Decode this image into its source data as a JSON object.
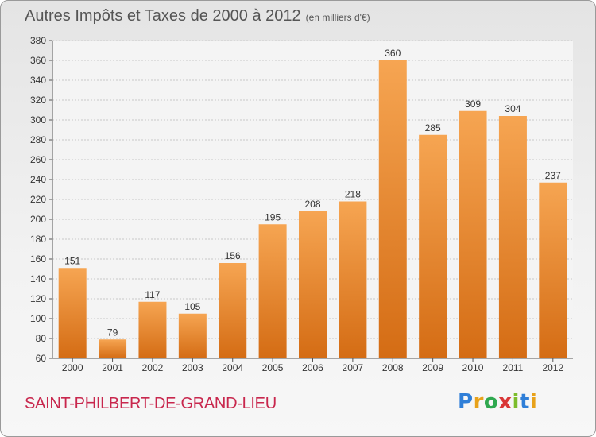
{
  "header": {
    "title": "Autres Impôts et Taxes de 2000 à 2012",
    "unit": "(en milliers d'€)"
  },
  "footer": {
    "city": "SAINT-PHILBERT-DE-GRAND-LIEU",
    "logo": "Proxiti"
  },
  "colors": {
    "bar_top": "#f6a552",
    "bar_bottom": "#d46c14",
    "axis_text": "#333333"
  },
  "chart_data": {
    "type": "bar",
    "title": "Autres Impôts et Taxes de 2000 à 2012",
    "subtitle": "(en milliers d'€)",
    "categories": [
      "2000",
      "2001",
      "2002",
      "2003",
      "2004",
      "2005",
      "2006",
      "2007",
      "2008",
      "2009",
      "2010",
      "2011",
      "2012"
    ],
    "values": [
      151,
      79,
      117,
      105,
      156,
      195,
      208,
      218,
      360,
      285,
      309,
      304,
      237
    ],
    "ylim": [
      60,
      380
    ],
    "yticks": [
      60,
      80,
      100,
      120,
      140,
      160,
      180,
      200,
      220,
      240,
      260,
      280,
      300,
      320,
      340,
      360,
      380
    ],
    "grid": true,
    "legend": "none"
  }
}
